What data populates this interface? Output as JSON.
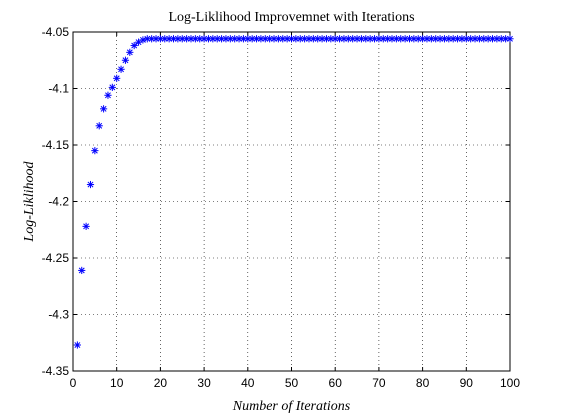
{
  "chart_data": {
    "type": "scatter",
    "title": "Log-Liklihood Improvemnet with Iterations",
    "xlabel": "Number of Iterations",
    "ylabel": "Log-Liklihood",
    "xlim": [
      0,
      100
    ],
    "ylim": [
      -4.35,
      -4.05
    ],
    "xticks": [
      0,
      10,
      20,
      30,
      40,
      50,
      60,
      70,
      80,
      90,
      100
    ],
    "xtick_labels": [
      "0",
      "10",
      "20",
      "30",
      "40",
      "50",
      "60",
      "70",
      "80",
      "90",
      "100"
    ],
    "yticks": [
      -4.35,
      -4.3,
      -4.25,
      -4.2,
      -4.15,
      -4.1,
      -4.05
    ],
    "ytick_labels": [
      "-4.35",
      "-4.3",
      "-4.25",
      "-4.2",
      "-4.15",
      "-4.1",
      "-4.05"
    ],
    "grid": true,
    "marker": "asterisk",
    "marker_color": "#0000ff",
    "series": [
      {
        "x": [
          1,
          2,
          3,
          4,
          5,
          6,
          7,
          8,
          9,
          10,
          11,
          12,
          13,
          14,
          15,
          16,
          17,
          18,
          19,
          20,
          21,
          22,
          23,
          24,
          25,
          26,
          27,
          28,
          29,
          30,
          31,
          32,
          33,
          34,
          35,
          36,
          37,
          38,
          39,
          40,
          41,
          42,
          43,
          44,
          45,
          46,
          47,
          48,
          49,
          50,
          51,
          52,
          53,
          54,
          55,
          56,
          57,
          58,
          59,
          60,
          61,
          62,
          63,
          64,
          65,
          66,
          67,
          68,
          69,
          70,
          71,
          72,
          73,
          74,
          75,
          76,
          77,
          78,
          79,
          80,
          81,
          82,
          83,
          84,
          85,
          86,
          87,
          88,
          89,
          90,
          91,
          92,
          93,
          94,
          95,
          96,
          97,
          98,
          99,
          100
        ],
        "y": [
          -4.327,
          -4.261,
          -4.222,
          -4.185,
          -4.155,
          -4.133,
          -4.118,
          -4.106,
          -4.099,
          -4.091,
          -4.083,
          -4.075,
          -4.068,
          -4.062,
          -4.059,
          -4.057,
          -4.056,
          -4.056,
          -4.056,
          -4.056,
          -4.056,
          -4.056,
          -4.056,
          -4.056,
          -4.056,
          -4.056,
          -4.056,
          -4.056,
          -4.056,
          -4.056,
          -4.056,
          -4.056,
          -4.056,
          -4.056,
          -4.056,
          -4.056,
          -4.056,
          -4.056,
          -4.056,
          -4.056,
          -4.056,
          -4.056,
          -4.056,
          -4.056,
          -4.056,
          -4.056,
          -4.056,
          -4.056,
          -4.056,
          -4.056,
          -4.056,
          -4.056,
          -4.056,
          -4.056,
          -4.056,
          -4.056,
          -4.056,
          -4.056,
          -4.056,
          -4.056,
          -4.056,
          -4.056,
          -4.056,
          -4.056,
          -4.056,
          -4.056,
          -4.056,
          -4.056,
          -4.056,
          -4.056,
          -4.056,
          -4.056,
          -4.056,
          -4.056,
          -4.056,
          -4.056,
          -4.056,
          -4.056,
          -4.056,
          -4.056,
          -4.056,
          -4.056,
          -4.056,
          -4.056,
          -4.056,
          -4.056,
          -4.056,
          -4.056,
          -4.056,
          -4.056,
          -4.056,
          -4.056,
          -4.056,
          -4.056,
          -4.056,
          -4.056,
          -4.056,
          -4.056,
          -4.056,
          -4.056
        ]
      }
    ]
  }
}
